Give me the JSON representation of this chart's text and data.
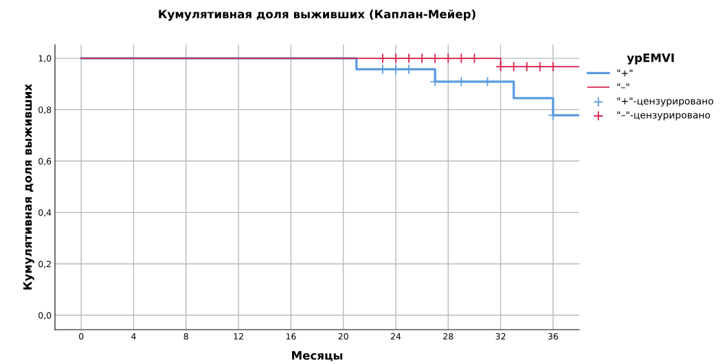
{
  "chart_data": {
    "type": "step",
    "title": "Кумулятивная доля выживших (Каплан-Мейер)",
    "xlabel": "Месяцы",
    "ylabel": "Кумулятивная доля выживших",
    "legend_title": "урEMVI",
    "legend": "right",
    "grid": true,
    "xlim": [
      -2,
      38
    ],
    "xticks": [
      0,
      4,
      8,
      12,
      16,
      20,
      24,
      28,
      32,
      36
    ],
    "ylim": [
      -0.056,
      1.053
    ],
    "yticks": [
      {
        "value": 0,
        "label": "0,0"
      },
      {
        "value": 0.2,
        "label": "0,2"
      },
      {
        "value": 0.4,
        "label": "0,4"
      },
      {
        "value": 0.6,
        "label": "0,6"
      },
      {
        "value": 0.8,
        "label": "0,8"
      },
      {
        "value": 1,
        "label": "1,0"
      }
    ],
    "series": [
      {
        "name": "\"+\"",
        "color": "#5b9be0",
        "marker": "none",
        "x": [
          0,
          21,
          27,
          33,
          36,
          38
        ],
        "values": [
          1,
          0.957,
          0.909,
          0.845,
          0.778,
          0.778
        ]
      },
      {
        "name": "\"–\"",
        "color": "#d9204a",
        "marker": "none",
        "x": [
          0,
          32,
          38
        ],
        "values": [
          1,
          0.967,
          0.967
        ]
      },
      {
        "name": "\"+\"-цензурировано",
        "type": "scatter",
        "color": "#5b9be0",
        "marker": "cross",
        "x": [
          23,
          24,
          25,
          27,
          29,
          31,
          36
        ],
        "values": [
          0.957,
          0.957,
          0.957,
          0.909,
          0.909,
          0.909,
          0.778
        ]
      },
      {
        "name": "\"–\"-цензурировано",
        "type": "scatter",
        "color": "#d9204a",
        "marker": "cross",
        "x": [
          23,
          24,
          25,
          26,
          27,
          28,
          29,
          30,
          32,
          33,
          34,
          35,
          36
        ],
        "values": [
          1,
          1,
          1,
          1,
          1,
          1,
          1,
          1,
          0.967,
          0.967,
          0.967,
          0.967,
          0.967
        ]
      }
    ]
  }
}
